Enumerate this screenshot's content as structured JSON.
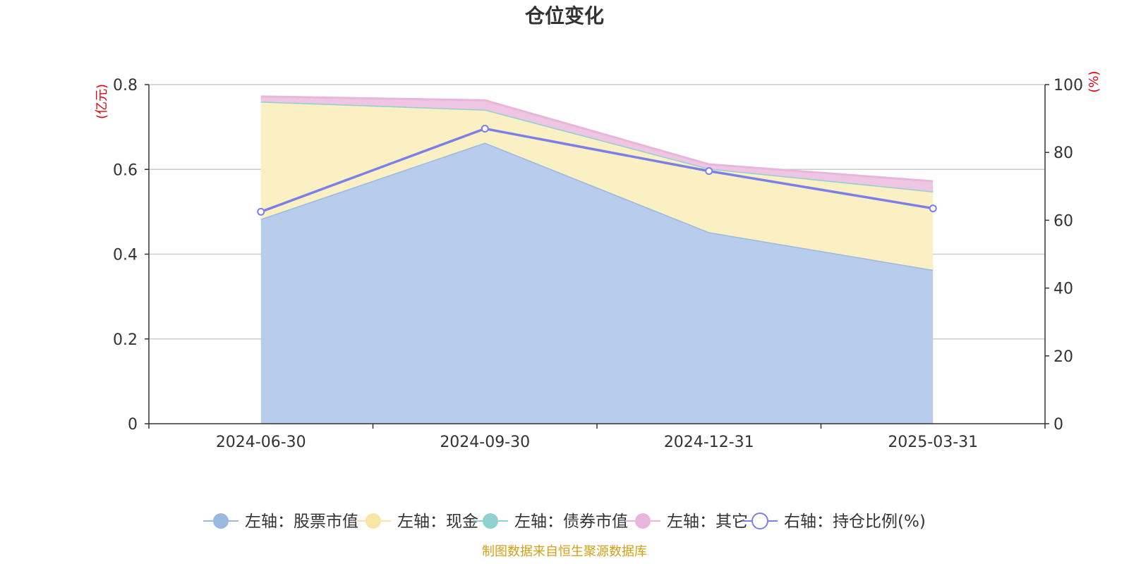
{
  "chart_data": {
    "type": "area",
    "title": "仓位变化",
    "categories": [
      "2024-06-30",
      "2024-09-30",
      "2024-12-31",
      "2025-03-31"
    ],
    "left_axis": {
      "unit_label": "(亿元)",
      "ticks": [
        "0",
        "0.2",
        "0.4",
        "0.6",
        "0.8"
      ],
      "range": [
        0,
        0.8
      ]
    },
    "right_axis": {
      "unit_label": "(%)",
      "ticks": [
        "0",
        "20",
        "40",
        "60",
        "80",
        "100"
      ],
      "range": [
        0,
        100
      ]
    },
    "grid": true,
    "stacked": true,
    "series": [
      {
        "name": "左轴：股票市值",
        "axis": "left",
        "kind": "area",
        "color": "#9bb8e0",
        "fill": "#b8cdeb",
        "values": [
          0.483,
          0.663,
          0.452,
          0.363
        ]
      },
      {
        "name": "左轴：现金",
        "axis": "left",
        "kind": "area",
        "color": "#f7e7a6",
        "fill": "#fbf0c4",
        "values": [
          0.277,
          0.078,
          0.15,
          0.185
        ]
      },
      {
        "name": "左轴：债券市值",
        "axis": "left",
        "kind": "area",
        "color": "#8fd1d1",
        "fill": "#a9dddd",
        "values": [
          0,
          0,
          0,
          0
        ]
      },
      {
        "name": "左轴：其它",
        "axis": "left",
        "kind": "area",
        "color": "#e8b6da",
        "fill": "#eec6e3",
        "values": [
          0.012,
          0.022,
          0.01,
          0.024
        ]
      },
      {
        "name": "右轴：持仓比例(%)",
        "axis": "right",
        "kind": "line",
        "color": "#7b7fe8",
        "values": [
          62.5,
          87.0,
          74.5,
          63.5
        ]
      }
    ],
    "legend_position": "bottom-center",
    "source_note": "制图数据来自恒生聚源数据库",
    "unit_color": "#e60012",
    "source_color": "#d4a017"
  }
}
